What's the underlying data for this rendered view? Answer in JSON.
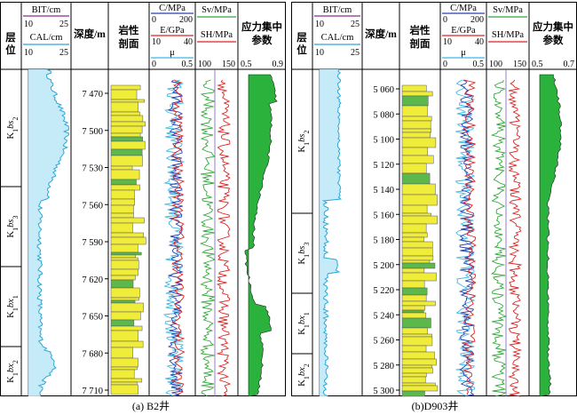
{
  "panel_a": {
    "caption": "(a) B2井",
    "header": {
      "layer": "层位",
      "bit_label": "BIT/cm",
      "bit_range": [
        "10",
        "25"
      ],
      "cal_label": "CAL/cm",
      "cal_range": [
        "10",
        "25"
      ],
      "depth_label": "深度/m",
      "litho_label": "岩性剖面",
      "c_label": "C/MPa",
      "c_range": [
        "0",
        "200"
      ],
      "e_label": "E/GPa",
      "e_range": [
        "10",
        "40"
      ],
      "mu_label": "μ",
      "mu_range": [
        "0",
        "0.5"
      ],
      "sv_label": "Sv/MPa",
      "sh_label": "SH/MPa",
      "s_range": [
        "100",
        "150"
      ],
      "sci_label": "应力集中参数",
      "sci_range": [
        "0.5",
        "0.9"
      ]
    },
    "depth_ticks": [
      "7 470",
      "7 500",
      "7 530",
      "7 560",
      "7 590",
      "7 620",
      "7 650",
      "7 680",
      "7 710"
    ],
    "zones": [
      "K1bs2",
      "K1bs3",
      "K1bx1",
      "K1bx2"
    ]
  },
  "panel_b": {
    "caption": "(b)D903井",
    "header": {
      "layer": "层位",
      "bit_label": "BIT/cm",
      "bit_range": [
        "10",
        "25"
      ],
      "cal_label": "CAL/cm",
      "cal_range": [
        "10",
        "25"
      ],
      "depth_label": "深度/m",
      "litho_label": "岩性剖面",
      "c_label": "C/MPa",
      "c_range": [
        "0",
        "200"
      ],
      "e_label": "E/GPa",
      "e_range": [
        "10",
        "40"
      ],
      "mu_label": "μ",
      "mu_range": [
        "0",
        "0.5"
      ],
      "sv_label": "Sv/MPa",
      "sh_label": "SH/MPa",
      "s_range": [
        "100",
        "150"
      ],
      "sci_label": "应力集中参数",
      "sci_range": [
        "0.5",
        "0.7"
      ]
    },
    "depth_ticks": [
      "5 060",
      "5 080",
      "5 100",
      "5 120",
      "5 140",
      "5 160",
      "5 180",
      "5 200",
      "5 220",
      "5 240",
      "5 260",
      "5 280",
      "5 300"
    ],
    "zones": [
      "K1bs2",
      "K1bs3",
      "K1bx1",
      "K1bx2"
    ]
  },
  "colors": {
    "cal": "#2aa8d8",
    "cal_fill": "#bfe8f7",
    "c_curve": "#2a3fb0",
    "e_curve": "#e02020",
    "mu_curve": "#3fb8e8",
    "sv": "#2ea836",
    "sh": "#e02020",
    "sci_fill": "#2bb23c",
    "litho": "#f0ec3a",
    "litho_green": "#5cb84a",
    "bit": "#8b2b8b"
  }
}
